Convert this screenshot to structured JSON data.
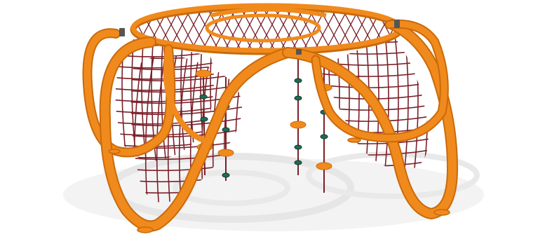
{
  "scene": {
    "subject": "orange-dome-climbing-net-structure",
    "colors": {
      "frame_orange": "#f08a1c",
      "frame_highlight": "#ffb35a",
      "frame_shadow": "#c96a0b",
      "net_rope": "#7a1f28",
      "step_green": "#1f6b55",
      "step_orange": "#f08a1c",
      "ground_shadow": "#e9e9e9",
      "background": "#ffffff"
    }
  }
}
